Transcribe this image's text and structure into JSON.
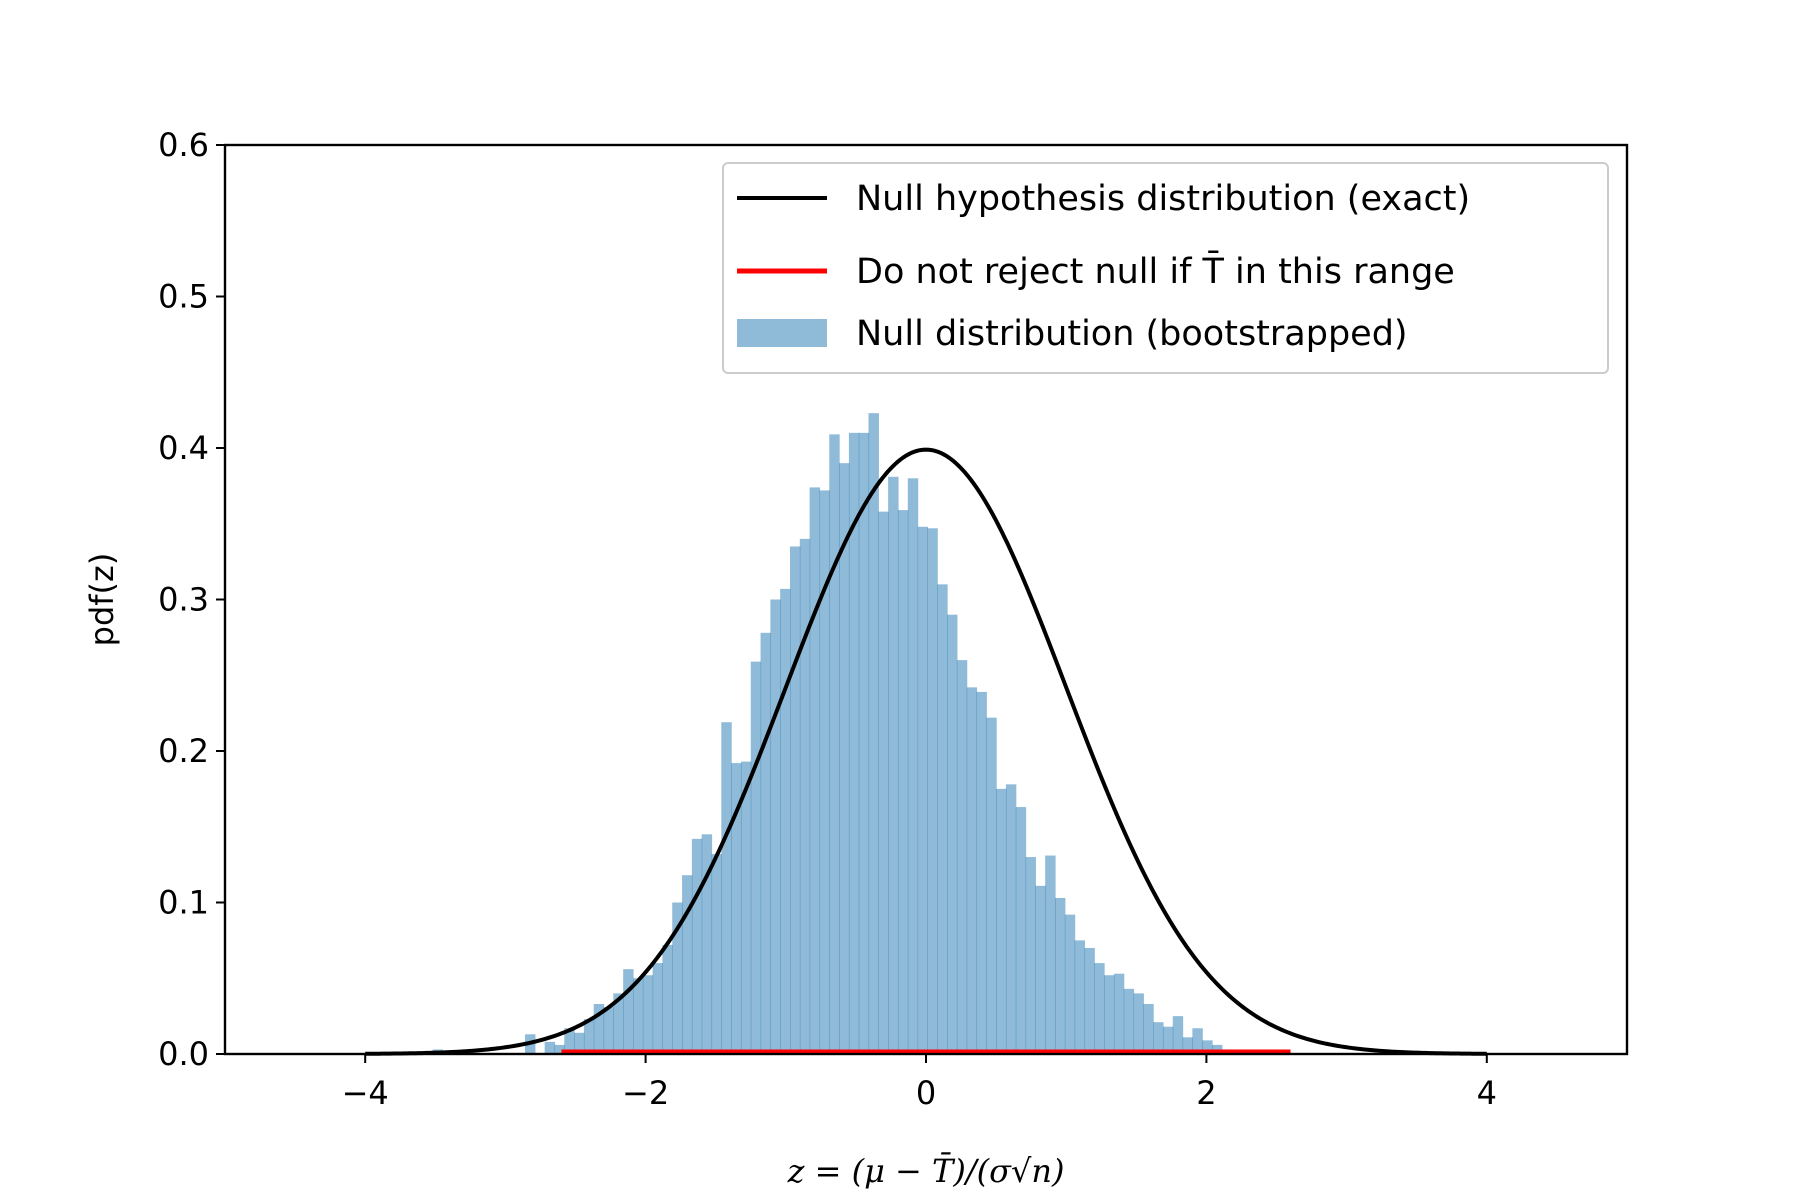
{
  "chart_data": {
    "type": "histogram",
    "xlabel": "z = (μ − T̄)/(σ√n)",
    "ylabel": "pdf(z)",
    "xlim": [
      -5,
      5
    ],
    "ylim": [
      0,
      0.6
    ],
    "x_ticks": [
      -4,
      -2,
      0,
      2,
      4
    ],
    "x_tick_labels": [
      "−4",
      "−2",
      "0",
      "2",
      "4"
    ],
    "y_ticks": [
      0.0,
      0.1,
      0.2,
      0.3,
      0.4,
      0.5,
      0.6
    ],
    "y_tick_labels": [
      "0.0",
      "0.1",
      "0.2",
      "0.3",
      "0.4",
      "0.5",
      "0.6"
    ],
    "grid": false,
    "legend_position": "top-right",
    "series": [
      {
        "name": "Null hypothesis distribution (exact)",
        "kind": "line",
        "color": "#000000",
        "function": "standard normal pdf",
        "x_range": [
          -4,
          4
        ]
      },
      {
        "name": "Do not reject null if T̄ in this range",
        "kind": "segment",
        "color": "#ff0000",
        "x": [
          -2.6,
          2.6
        ],
        "y": 0.0
      },
      {
        "name": "Null distribution (bootstrapped)",
        "kind": "histogram",
        "color": "#1f77b4",
        "alpha": 0.5,
        "bin_width": 0.07,
        "bins": [
          [
            -3.52,
            0.003
          ],
          [
            -2.86,
            0.013
          ],
          [
            -2.72,
            0.008
          ],
          [
            -2.65,
            0.006
          ],
          [
            -2.58,
            0.017
          ],
          [
            -2.51,
            0.014
          ],
          [
            -2.44,
            0.023
          ],
          [
            -2.37,
            0.033
          ],
          [
            -2.3,
            0.031
          ],
          [
            -2.23,
            0.04
          ],
          [
            -2.16,
            0.056
          ],
          [
            -2.09,
            0.05
          ],
          [
            -2.02,
            0.052
          ],
          [
            -1.95,
            0.06
          ],
          [
            -1.88,
            0.072
          ],
          [
            -1.81,
            0.1
          ],
          [
            -1.74,
            0.118
          ],
          [
            -1.67,
            0.142
          ],
          [
            -1.6,
            0.145
          ],
          [
            -1.53,
            0.132
          ],
          [
            -1.46,
            0.219
          ],
          [
            -1.39,
            0.192
          ],
          [
            -1.32,
            0.193
          ],
          [
            -1.25,
            0.259
          ],
          [
            -1.18,
            0.278
          ],
          [
            -1.11,
            0.3
          ],
          [
            -1.04,
            0.307
          ],
          [
            -0.97,
            0.335
          ],
          [
            -0.9,
            0.34
          ],
          [
            -0.83,
            0.374
          ],
          [
            -0.76,
            0.372
          ],
          [
            -0.69,
            0.409
          ],
          [
            -0.62,
            0.39
          ],
          [
            -0.55,
            0.41
          ],
          [
            -0.48,
            0.41
          ],
          [
            -0.41,
            0.423
          ],
          [
            -0.34,
            0.358
          ],
          [
            -0.27,
            0.381
          ],
          [
            -0.2,
            0.359
          ],
          [
            -0.13,
            0.38
          ],
          [
            -0.06,
            0.348
          ],
          [
            0.01,
            0.347
          ],
          [
            0.08,
            0.31
          ],
          [
            0.15,
            0.29
          ],
          [
            0.22,
            0.26
          ],
          [
            0.29,
            0.242
          ],
          [
            0.36,
            0.239
          ],
          [
            0.43,
            0.222
          ],
          [
            0.5,
            0.175
          ],
          [
            0.57,
            0.178
          ],
          [
            0.64,
            0.163
          ],
          [
            0.71,
            0.13
          ],
          [
            0.78,
            0.111
          ],
          [
            0.85,
            0.131
          ],
          [
            0.92,
            0.103
          ],
          [
            0.99,
            0.092
          ],
          [
            1.06,
            0.075
          ],
          [
            1.13,
            0.07
          ],
          [
            1.2,
            0.06
          ],
          [
            1.27,
            0.052
          ],
          [
            1.34,
            0.053
          ],
          [
            1.41,
            0.043
          ],
          [
            1.48,
            0.04
          ],
          [
            1.55,
            0.033
          ],
          [
            1.62,
            0.021
          ],
          [
            1.69,
            0.018
          ],
          [
            1.76,
            0.025
          ],
          [
            1.83,
            0.011
          ],
          [
            1.9,
            0.017
          ],
          [
            1.97,
            0.009
          ],
          [
            2.04,
            0.006
          ],
          [
            2.11,
            0.003
          ],
          [
            2.18,
            0.002
          ],
          [
            2.25,
            0.001
          ]
        ]
      }
    ]
  }
}
